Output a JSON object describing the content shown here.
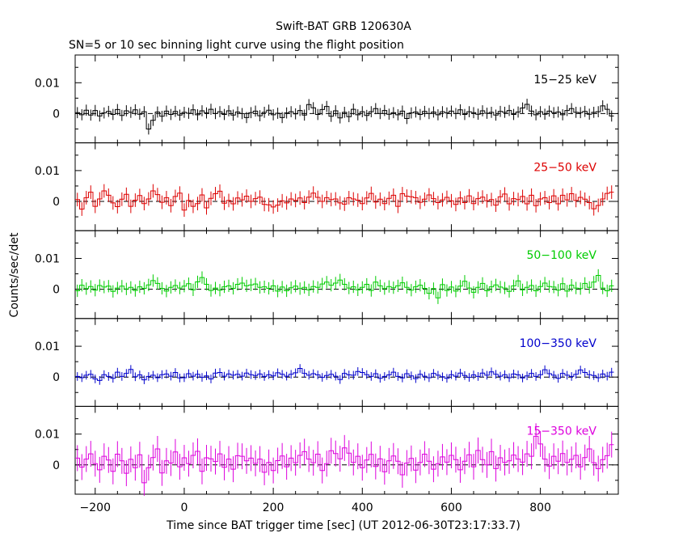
{
  "chart_data": {
    "type": "line",
    "title": "Swift-BAT GRB 120630A",
    "subtitle": "SN=5 or 10 sec binning light curve using the flight position",
    "xlabel": "Time since BAT trigger time [sec] (UT 2012-06-30T23:17:33.7)",
    "ylabel": "Counts/sec/det",
    "xlim": [
      -245,
      975
    ],
    "ylim": [
      -0.0095,
      0.019
    ],
    "x_ticks": [
      -200,
      0,
      200,
      400,
      600,
      800
    ],
    "y_ticks": [
      0,
      0.01
    ],
    "y_tick_labels": [
      "0",
      "0.01"
    ],
    "bin_width": 10,
    "bin_start": -240,
    "bin_count": 121,
    "grid": false,
    "zero_line": "dashed",
    "panels": [
      {
        "name": "15−25 keV",
        "color": "#000000",
        "err": 0.0018,
        "values": [
          0.0003,
          -0.0004,
          0.0011,
          -0.0005,
          0.001,
          -0.0008,
          0.0002,
          0.0007,
          -0.0003,
          0.0013,
          -0.0006,
          0.0009,
          0.0004,
          0.0012,
          -0.0002,
          0.0006,
          -0.005,
          -0.0022,
          0.0005,
          -0.0009,
          0.0008,
          -0.0003,
          0.0007,
          -0.0005,
          0.0004,
          0.0001,
          0.0012,
          -0.0004,
          0.0009,
          0.0002,
          0.0014,
          0.0,
          0.0006,
          -0.0003,
          0.0009,
          -0.0005,
          0.0005,
          0.0,
          -0.0013,
          0.0003,
          0.0008,
          -0.0007,
          0.0004,
          0.0011,
          -0.0004,
          0.0001,
          -0.0013,
          0.0002,
          0.0006,
          -0.0001,
          0.001,
          -0.0005,
          0.0029,
          0.0019,
          -0.0003,
          0.0013,
          0.0023,
          -0.0009,
          0.0009,
          -0.0014,
          0.0004,
          -0.001,
          0.0014,
          -0.0004,
          0.0006,
          -0.0006,
          0.0006,
          0.0016,
          0.0,
          0.001,
          -0.0002,
          0.0003,
          -0.0004,
          0.0008,
          -0.0016,
          0.0002,
          0.0005,
          -0.0003,
          0.0007,
          0.0,
          0.0005,
          -0.0004,
          0.0006,
          0.0002,
          0.0008,
          0.0,
          0.0012,
          -0.0003,
          0.0006,
          0.0003,
          -0.0002,
          0.0009,
          0.0001,
          0.0004,
          -0.0005,
          0.0007,
          0.0004,
          0.001,
          -0.0003,
          0.0005,
          0.0018,
          0.003,
          0.0008,
          -0.0004,
          0.0006,
          -0.0002,
          0.0008,
          0.0003,
          0.0005,
          -0.0004,
          0.001,
          0.0016,
          0.0004,
          0.0003,
          0.0007,
          -0.0002,
          0.0004,
          0.0006,
          0.0025,
          0.0014,
          -0.0008
        ]
      },
      {
        "name": "25−50 keV",
        "color": "#dd0000",
        "err": 0.0022,
        "values": [
          0.0006,
          -0.0025,
          0.0012,
          0.003,
          -0.0016,
          0.0008,
          0.0034,
          0.002,
          -0.0005,
          -0.0017,
          0.0007,
          0.0023,
          -0.0016,
          0.0004,
          0.0019,
          -0.0007,
          0.0008,
          0.0034,
          0.0022,
          -0.0003,
          0.0012,
          -0.0014,
          0.0016,
          0.0027,
          -0.0028,
          0.0003,
          -0.0016,
          -0.0007,
          0.0021,
          -0.0021,
          0.001,
          0.0025,
          0.0033,
          -0.0006,
          0.0003,
          -0.0008,
          0.0011,
          0.0005,
          0.0017,
          0.0,
          0.0009,
          0.0014,
          -0.001,
          -0.0011,
          -0.0018,
          -0.0012,
          0.0002,
          -0.0005,
          0.0008,
          0.0003,
          0.0011,
          -0.0004,
          0.0014,
          0.0027,
          0.0013,
          0.0,
          0.0012,
          0.0006,
          0.0008,
          -0.0005,
          -0.0009,
          0.0012,
          0.0008,
          0.0004,
          -0.0007,
          0.0011,
          0.0026,
          -0.0002,
          0.0007,
          -0.0007,
          0.001,
          0.002,
          -0.0016,
          0.0025,
          0.0017,
          0.0015,
          0.0012,
          -0.0003,
          0.0007,
          0.0021,
          0.0009,
          -0.0004,
          0.0005,
          0.0013,
          0.0002,
          -0.001,
          0.0011,
          -0.0004,
          0.0018,
          -0.0007,
          0.0009,
          0.0014,
          0.0002,
          0.0006,
          -0.0012,
          0.0015,
          0.0024,
          -0.0008,
          0.0009,
          0.0006,
          0.0016,
          -0.0008,
          0.002,
          -0.0014,
          0.0008,
          0.0012,
          -0.0004,
          0.0018,
          -0.0008,
          0.002,
          0.0005,
          0.0025,
          0.0003,
          0.0013,
          0.0007,
          -0.0004,
          -0.0024,
          -0.0013,
          0.0008,
          0.0026,
          0.003
        ]
      },
      {
        "name": "50−100 keV",
        "color": "#00cc00",
        "err": 0.002,
        "values": [
          -0.0005,
          0.0013,
          0.0002,
          0.0009,
          -0.0003,
          0.0012,
          0.0007,
          0.001,
          -0.0007,
          0.0004,
          0.001,
          0.0001,
          0.0006,
          -0.0004,
          0.0008,
          0.0003,
          0.0014,
          0.0028,
          0.0019,
          0.0003,
          -0.0006,
          0.0006,
          0.0012,
          0.0004,
          0.001,
          0.0018,
          -0.0002,
          0.0024,
          0.0038,
          0.0016,
          -0.0004,
          0.0004,
          -0.0003,
          0.0008,
          0.0011,
          0.0003,
          0.0016,
          0.002,
          0.0011,
          0.0014,
          0.0017,
          0.0006,
          0.0008,
          0.0003,
          0.0011,
          -0.0006,
          0.0007,
          -0.0005,
          0.0005,
          0.001,
          0.0002,
          0.0006,
          -0.0002,
          0.0009,
          0.0006,
          0.0017,
          0.0023,
          0.0013,
          0.002,
          0.003,
          0.0016,
          0.0004,
          0.0008,
          -0.0002,
          0.0006,
          0.0016,
          -0.0004,
          0.0023,
          0.0011,
          0.0002,
          0.0009,
          0.0005,
          0.0011,
          0.0021,
          0.0006,
          -0.0003,
          0.0008,
          0.0013,
          0.0003,
          -0.0013,
          0.0002,
          -0.0028,
          0.0015,
          -0.0004,
          0.0007,
          -0.0006,
          0.001,
          0.0026,
          0.0004,
          -0.001,
          0.0006,
          0.0019,
          -0.0005,
          0.0008,
          0.0014,
          0.0007,
          0.0004,
          -0.0007,
          0.0011,
          0.0027,
          -0.0002,
          0.0006,
          0.0012,
          -0.0005,
          0.0009,
          0.002,
          0.0009,
          0.0007,
          -0.0003,
          0.0018,
          -0.0006,
          0.0013,
          0.0004,
          0.0002,
          0.0019,
          0.0006,
          0.0023,
          0.0045,
          0.0004,
          -0.0005,
          0.0011
        ]
      },
      {
        "name": "100−350 keV",
        "color": "#0000cc",
        "err": 0.0014,
        "values": [
          0.0002,
          -0.0002,
          0.0006,
          0.0009,
          -0.0006,
          -0.0011,
          0.0008,
          0.0002,
          -0.0004,
          0.0016,
          0.0002,
          0.0012,
          0.0025,
          0.0001,
          0.0007,
          -0.0009,
          0.0002,
          0.0006,
          -0.0002,
          0.0008,
          0.001,
          0.0003,
          0.0015,
          -0.0003,
          -0.0002,
          0.0011,
          0.0003,
          0.0009,
          -0.0001,
          0.0004,
          -0.0006,
          0.0013,
          0.0015,
          0.0003,
          0.001,
          0.0006,
          0.0009,
          0.0003,
          0.0013,
          0.0008,
          0.0005,
          0.001,
          0.0002,
          0.0008,
          0.0004,
          0.0014,
          0.0009,
          0.0003,
          0.0009,
          0.0014,
          0.0028,
          0.0012,
          0.0006,
          0.0011,
          0.0007,
          -0.0001,
          0.0005,
          0.0009,
          0.0003,
          -0.0008,
          0.0012,
          0.0007,
          0.0006,
          0.0018,
          0.0015,
          0.0008,
          0.0002,
          0.0011,
          -0.0004,
          0.0002,
          0.0007,
          0.0016,
          0.0002,
          -0.0003,
          0.0011,
          0.0004,
          -0.0005,
          0.0009,
          0.0003,
          -0.0002,
          0.0012,
          0.0006,
          0.0001,
          -0.0004,
          0.0008,
          0.0003,
          0.0013,
          0.0005,
          -0.0001,
          0.0007,
          0.0002,
          0.0013,
          0.0006,
          0.0017,
          0.0009,
          0.0003,
          0.0008,
          -0.0002,
          0.001,
          0.0007,
          -0.0003,
          0.0004,
          0.0012,
          0.0002,
          0.0008,
          0.0024,
          0.0011,
          0.0006,
          -0.0004,
          0.0012,
          0.0006,
          0.0002,
          0.0009,
          0.0023,
          0.0015,
          0.0008,
          0.0005,
          -0.0002,
          0.001,
          0.0003,
          0.0016
        ]
      },
      {
        "name": "15−350 keV",
        "color": "#dd00dd",
        "err": 0.0042,
        "values": [
          0.0022,
          -0.0007,
          0.0019,
          0.0036,
          0.0004,
          -0.0016,
          0.0028,
          0.0016,
          -0.0021,
          0.0035,
          0.0013,
          -0.0027,
          0.0018,
          -0.0009,
          0.0033,
          -0.0058,
          -0.0009,
          0.0024,
          0.0052,
          -0.0026,
          0.0013,
          0.0006,
          0.0042,
          -0.0006,
          0.0023,
          0.0004,
          0.0031,
          0.0044,
          -0.0021,
          0.0023,
          0.002,
          0.0011,
          0.0036,
          -0.0008,
          0.0019,
          -0.0014,
          0.003,
          0.0028,
          0.0013,
          0.0022,
          0.0005,
          0.0019,
          -0.0024,
          0.0008,
          -0.0018,
          0.0014,
          0.0029,
          -0.0006,
          0.0022,
          0.0007,
          0.0031,
          0.0043,
          0.0019,
          0.0007,
          0.0035,
          -0.0018,
          0.0004,
          0.0046,
          0.0037,
          0.002,
          0.0055,
          0.0038,
          0.0008,
          0.0028,
          -0.0009,
          0.0016,
          0.0034,
          -0.0005,
          0.002,
          -0.0022,
          0.0013,
          0.0029,
          0.0012,
          -0.0032,
          0.0006,
          0.0021,
          -0.0017,
          0.0008,
          0.0035,
          0.0012,
          -0.0014,
          0.0004,
          0.0026,
          0.0009,
          0.0031,
          0.0017,
          -0.0016,
          0.0012,
          0.0033,
          -0.0006,
          0.0047,
          0.0017,
          0.0,
          0.0043,
          -0.0012,
          0.0023,
          0.0008,
          0.0013,
          0.0032,
          0.0019,
          0.0009,
          0.0036,
          0.0028,
          0.0093,
          0.0068,
          0.0019,
          -0.0004,
          0.0028,
          0.0012,
          0.0037,
          0.0008,
          0.0018,
          0.0031,
          -0.0006,
          0.0024,
          0.0052,
          0.0007,
          -0.0012,
          0.0017,
          0.003,
          0.0066
        ]
      }
    ]
  }
}
